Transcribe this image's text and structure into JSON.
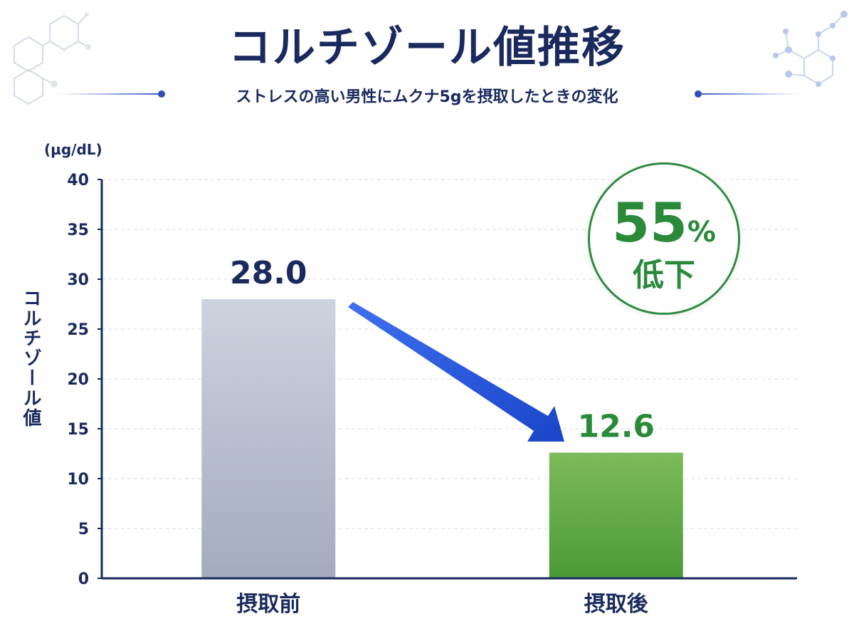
{
  "header": {
    "title": "コルチゾール値推移",
    "subtitle": "ストレスの高い男性にムクナ5gを摂取したときの変化"
  },
  "chart_data": {
    "type": "bar",
    "title": "コルチゾール値推移",
    "subtitle": "ストレスの高い男性にムクナ5gを摂取したときの変化",
    "categories": [
      "摂取前",
      "摂取後"
    ],
    "values": [
      28.0,
      12.6
    ],
    "value_labels": [
      "28.0",
      "12.6"
    ],
    "ylabel": "コルチゾール値",
    "yunit": "(µg/dL)",
    "ylim": [
      0,
      40
    ],
    "yticks": [
      0,
      5,
      10,
      15,
      20,
      25,
      30,
      35,
      40
    ],
    "grid": true,
    "bar_colors": [
      "#b4bbcc",
      "#5faa45"
    ],
    "value_label_colors": [
      "#1a2a5e",
      "#2a8a3a"
    ],
    "annotation": {
      "number": "55",
      "unit": "%",
      "text": "低下"
    }
  },
  "colors": {
    "title": "#1a2a5e",
    "accent_blue": "#2f55d4",
    "accent_green": "#2a8a3a"
  }
}
